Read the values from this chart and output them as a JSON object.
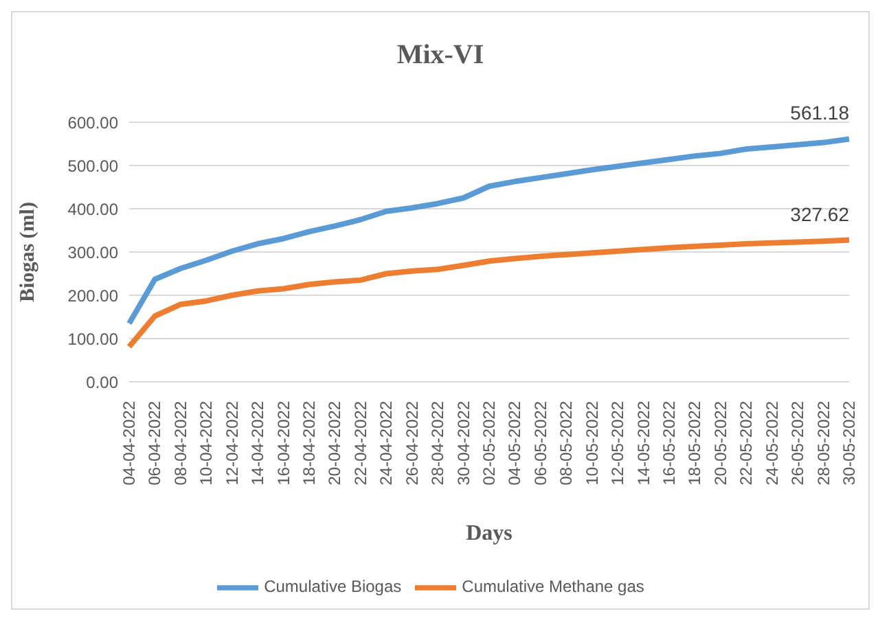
{
  "chart_data": {
    "type": "line",
    "title": "Mix-VI",
    "xlabel": "Days",
    "ylabel": "Biogas (ml)",
    "categories": [
      "04-04-2022",
      "06-04-2022",
      "08-04-2022",
      "10-04-2022",
      "12-04-2022",
      "14-04-2022",
      "16-04-2022",
      "18-04-2022",
      "20-04-2022",
      "22-04-2022",
      "24-04-2022",
      "26-04-2022",
      "28-04-2022",
      "30-04-2022",
      "02-05-2022",
      "04-05-2022",
      "06-05-2022",
      "08-05-2022",
      "10-05-2022",
      "12-05-2022",
      "14-05-2022",
      "16-05-2022",
      "18-05-2022",
      "20-05-2022",
      "22-05-2022",
      "24-05-2022",
      "26-05-2022",
      "28-05-2022",
      "30-05-2022"
    ],
    "series": [
      {
        "name": "Cumulative Biogas",
        "color": "#5b9bd5",
        "values": [
          135,
          237,
          262,
          281,
          302,
          319,
          331,
          347,
          360,
          375,
          394,
          402,
          412,
          425,
          452,
          463,
          472,
          481,
          490,
          498,
          506,
          514,
          522,
          528,
          538,
          543,
          548,
          553,
          561.18
        ],
        "value_labels": [
          null,
          null,
          null,
          null,
          null,
          null,
          null,
          null,
          null,
          null,
          null,
          null,
          null,
          null,
          null,
          null,
          null,
          null,
          null,
          null,
          null,
          null,
          null,
          null,
          null,
          null,
          null,
          null,
          "561.18"
        ]
      },
      {
        "name": "Cumulative Methane gas",
        "color": "#ed7d31",
        "values": [
          81,
          152,
          179,
          187,
          200,
          210,
          215,
          225,
          231,
          235,
          250,
          256,
          260,
          269,
          279,
          285,
          290,
          294,
          298,
          302,
          306,
          310,
          313,
          316,
          319,
          321,
          323,
          325,
          327.62
        ],
        "value_labels": [
          null,
          null,
          null,
          null,
          null,
          null,
          null,
          null,
          null,
          null,
          null,
          null,
          null,
          null,
          null,
          null,
          null,
          null,
          null,
          null,
          null,
          null,
          null,
          null,
          null,
          null,
          null,
          null,
          "327.62"
        ]
      }
    ],
    "ylim": [
      0,
      600
    ],
    "yticks": [
      {
        "value": 0,
        "label": "0.00"
      },
      {
        "value": 100,
        "label": "100.00"
      },
      {
        "value": 200,
        "label": "200.00"
      },
      {
        "value": 300,
        "label": "300.00"
      },
      {
        "value": 400,
        "label": "400.00"
      },
      {
        "value": 500,
        "label": "500.00"
      },
      {
        "value": 600,
        "label": "600.00"
      }
    ],
    "grid": "y",
    "legend": "bottom",
    "marker": "none",
    "line_style": "solid"
  }
}
